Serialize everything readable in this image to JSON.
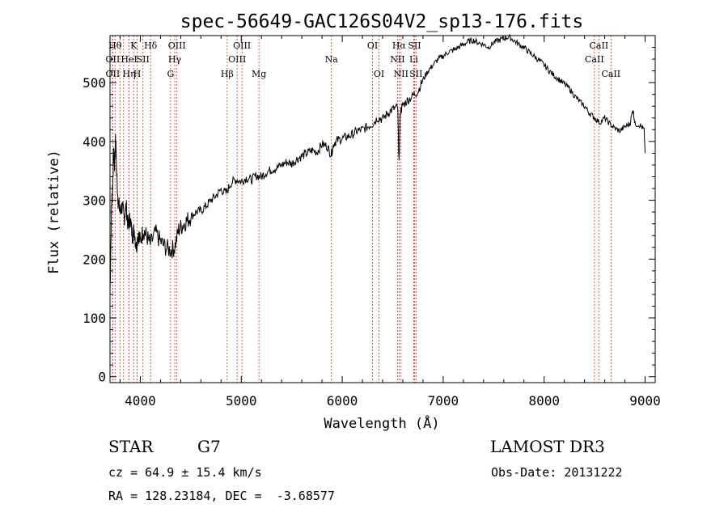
{
  "chart_data": {
    "type": "line",
    "title": "spec-56649-GAC126S04V2_sp13-176.fits",
    "xlabel": "Wavelength (Å)",
    "ylabel": "Flux (relative)",
    "xlim": [
      3700,
      9100
    ],
    "ylim": [
      -10,
      580
    ],
    "xticks": [
      4000,
      5000,
      6000,
      7000,
      8000,
      9000
    ],
    "yticks": [
      0,
      100,
      200,
      300,
      400,
      500
    ],
    "series": [
      {
        "name": "flux",
        "points": [
          [
            3700,
            140
          ],
          [
            3715,
            290
          ],
          [
            3725,
            320
          ],
          [
            3735,
            380
          ],
          [
            3745,
            360
          ],
          [
            3755,
            410
          ],
          [
            3765,
            350
          ],
          [
            3780,
            300
          ],
          [
            3800,
            280
          ],
          [
            3820,
            290
          ],
          [
            3840,
            270
          ],
          [
            3860,
            290
          ],
          [
            3880,
            255
          ],
          [
            3900,
            270
          ],
          [
            3920,
            240
          ],
          [
            3940,
            250
          ],
          [
            3960,
            220
          ],
          [
            3980,
            245
          ],
          [
            4000,
            230
          ],
          [
            4030,
            250
          ],
          [
            4060,
            240
          ],
          [
            4100,
            225
          ],
          [
            4150,
            245
          ],
          [
            4200,
            230
          ],
          [
            4250,
            220
          ],
          [
            4300,
            215
          ],
          [
            4340,
            220
          ],
          [
            4380,
            250
          ],
          [
            4420,
            258
          ],
          [
            4460,
            265
          ],
          [
            4500,
            272
          ],
          [
            4550,
            280
          ],
          [
            4600,
            282
          ],
          [
            4650,
            290
          ],
          [
            4700,
            300
          ],
          [
            4750,
            308
          ],
          [
            4800,
            318
          ],
          [
            4850,
            312
          ],
          [
            4900,
            330
          ],
          [
            4950,
            335
          ],
          [
            5000,
            332
          ],
          [
            5050,
            338
          ],
          [
            5100,
            335
          ],
          [
            5150,
            342
          ],
          [
            5200,
            340
          ],
          [
            5250,
            348
          ],
          [
            5300,
            352
          ],
          [
            5350,
            355
          ],
          [
            5400,
            360
          ],
          [
            5450,
            365
          ],
          [
            5500,
            362
          ],
          [
            5550,
            370
          ],
          [
            5600,
            375
          ],
          [
            5650,
            380
          ],
          [
            5700,
            385
          ],
          [
            5750,
            382
          ],
          [
            5800,
            395
          ],
          [
            5850,
            392
          ],
          [
            5890,
            378
          ],
          [
            5920,
            398
          ],
          [
            5950,
            402
          ],
          [
            6000,
            405
          ],
          [
            6050,
            408
          ],
          [
            6100,
            412
          ],
          [
            6150,
            418
          ],
          [
            6200,
            420
          ],
          [
            6250,
            425
          ],
          [
            6300,
            430
          ],
          [
            6350,
            440
          ],
          [
            6400,
            438
          ],
          [
            6450,
            448
          ],
          [
            6500,
            455
          ],
          [
            6550,
            458
          ],
          [
            6563,
            360
          ],
          [
            6575,
            450
          ],
          [
            6600,
            462
          ],
          [
            6650,
            470
          ],
          [
            6700,
            478
          ],
          [
            6750,
            485
          ],
          [
            6800,
            505
          ],
          [
            6850,
            520
          ],
          [
            6900,
            530
          ],
          [
            6950,
            540
          ],
          [
            7000,
            545
          ],
          [
            7050,
            552
          ],
          [
            7100,
            555
          ],
          [
            7150,
            560
          ],
          [
            7200,
            565
          ],
          [
            7250,
            570
          ],
          [
            7300,
            572
          ],
          [
            7350,
            568
          ],
          [
            7400,
            565
          ],
          [
            7450,
            560
          ],
          [
            7500,
            568
          ],
          [
            7550,
            572
          ],
          [
            7600,
            575
          ],
          [
            7650,
            578
          ],
          [
            7700,
            572
          ],
          [
            7750,
            565
          ],
          [
            7800,
            560
          ],
          [
            7850,
            552
          ],
          [
            7900,
            545
          ],
          [
            7950,
            538
          ],
          [
            8000,
            530
          ],
          [
            8050,
            520
          ],
          [
            8100,
            512
          ],
          [
            8150,
            505
          ],
          [
            8200,
            498
          ],
          [
            8250,
            490
          ],
          [
            8300,
            478
          ],
          [
            8350,
            468
          ],
          [
            8400,
            460
          ],
          [
            8450,
            448
          ],
          [
            8500,
            440
          ],
          [
            8550,
            432
          ],
          [
            8600,
            440
          ],
          [
            8650,
            430
          ],
          [
            8700,
            422
          ],
          [
            8750,
            418
          ],
          [
            8800,
            425
          ],
          [
            8850,
            430
          ],
          [
            8880,
            455
          ],
          [
            8900,
            430
          ],
          [
            8950,
            428
          ],
          [
            8990,
            420
          ],
          [
            9000,
            380
          ]
        ]
      }
    ],
    "line_markers": [
      {
        "wavelength": 3727,
        "label": "OII",
        "row": 2
      },
      {
        "wavelength": 3727,
        "label": "OII",
        "row": 3
      },
      {
        "wavelength": 3750,
        "label": "Hθ",
        "row": 1
      },
      {
        "wavelength": 3798,
        "label": "",
        "row": 1
      },
      {
        "wavelength": 3835,
        "label": "",
        "row": 1
      },
      {
        "wavelength": 3889,
        "label": "HeI",
        "row": 2
      },
      {
        "wavelength": 3889,
        "label": "Hη",
        "row": 3
      },
      {
        "wavelength": 3934,
        "label": "K",
        "row": 1
      },
      {
        "wavelength": 3969,
        "label": "H",
        "row": 3
      },
      {
        "wavelength": 4026,
        "label": "SII",
        "row": 2
      },
      {
        "wavelength": 4102,
        "label": "Hδ",
        "row": 1
      },
      {
        "wavelength": 4300,
        "label": "G",
        "row": 3
      },
      {
        "wavelength": 4341,
        "label": "Hγ",
        "row": 2
      },
      {
        "wavelength": 4363,
        "label": "OIII",
        "row": 1
      },
      {
        "wavelength": 4861,
        "label": "Hβ",
        "row": 3
      },
      {
        "wavelength": 4959,
        "label": "OIII",
        "row": 2
      },
      {
        "wavelength": 5007,
        "label": "OIII",
        "row": 1
      },
      {
        "wavelength": 5175,
        "label": "Mg",
        "row": 3
      },
      {
        "wavelength": 5893,
        "label": "Na",
        "row": 2
      },
      {
        "wavelength": 6300,
        "label": "OI",
        "row": 1
      },
      {
        "wavelength": 6364,
        "label": "OI",
        "row": 3
      },
      {
        "wavelength": 6548,
        "label": "NII",
        "row": 2
      },
      {
        "wavelength": 6563,
        "label": "Hα",
        "row": 1
      },
      {
        "wavelength": 6583,
        "label": "NII",
        "row": 3
      },
      {
        "wavelength": 6708,
        "label": "Li",
        "row": 2
      },
      {
        "wavelength": 6716,
        "label": "SII",
        "row": 1
      },
      {
        "wavelength": 6731,
        "label": "SII",
        "row": 3
      },
      {
        "wavelength": 8498,
        "label": "CaII",
        "row": 2
      },
      {
        "wavelength": 8542,
        "label": "CaII",
        "row": 1
      },
      {
        "wavelength": 8662,
        "label": "CaII",
        "row": 3
      }
    ]
  },
  "info": {
    "object_class": "STAR",
    "subclass": "G7",
    "survey": "LAMOST DR3",
    "redshift_label": "cz = 64.9 ± 15.4 km/s",
    "obs_date_label": "Obs-Date: 20131222",
    "coords_label": "RA = 128.23184, DEC =  -3.68577"
  },
  "colors": {
    "axis": "#000000",
    "spectrum": "#000000",
    "marker_line": "#c0392b"
  }
}
